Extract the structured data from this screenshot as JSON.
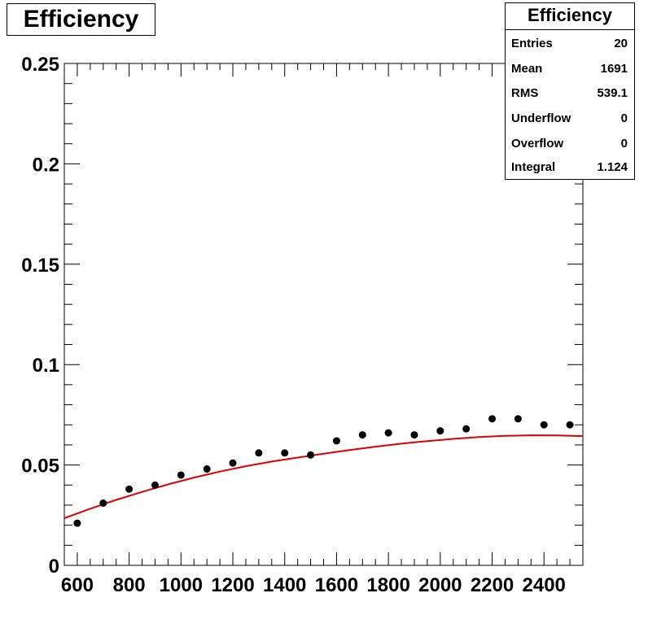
{
  "title": "Efficiency",
  "stats": {
    "title": "Efficiency",
    "rows": [
      {
        "label": "Entries",
        "value": "20"
      },
      {
        "label": "Mean",
        "value": "1691"
      },
      {
        "label": "RMS",
        "value": "539.1"
      },
      {
        "label": "Underflow",
        "value": "0"
      },
      {
        "label": "Overflow",
        "value": "0"
      },
      {
        "label": "Integral",
        "value": "1.124"
      }
    ]
  },
  "colors": {
    "fit": "#dd0000",
    "points": "#000000",
    "frame": "#000000"
  },
  "chart_data": {
    "type": "scatter",
    "title": "Efficiency",
    "xlabel": "",
    "ylabel": "",
    "xlim": [
      550,
      2550
    ],
    "ylim": [
      0,
      0.25
    ],
    "x_ticks": [
      600,
      800,
      1000,
      1200,
      1400,
      1600,
      1800,
      2000,
      2200,
      2400
    ],
    "x_tick_labels": [
      "600",
      "800",
      "1000",
      "1200",
      "1400",
      "1600",
      "1800",
      "2000",
      "2200",
      "2400"
    ],
    "y_ticks": [
      0,
      0.05,
      0.1,
      0.15,
      0.2,
      0.25
    ],
    "y_tick_labels": [
      "0",
      "0.05",
      "0.1",
      "0.15",
      "0.2",
      "0.25"
    ],
    "grid": false,
    "series": [
      {
        "x": [
          600,
          700,
          800,
          900,
          1000,
          1100,
          1200,
          1300,
          1400,
          1500,
          1600,
          1700,
          1800,
          1900,
          2000,
          2100,
          2200,
          2300,
          2400,
          2500
        ],
        "y": [
          0.021,
          0.031,
          0.038,
          0.04,
          0.045,
          0.048,
          0.051,
          0.056,
          0.056,
          0.055,
          0.062,
          0.065,
          0.066,
          0.065,
          0.067,
          0.068,
          0.073,
          0.073,
          0.07,
          0.07
        ]
      }
    ],
    "fit": {
      "type": "quadratic",
      "color": "#dd0000",
      "x": [
        550,
        650,
        750,
        850,
        950,
        1050,
        1150,
        1250,
        1350,
        1450,
        1550,
        1650,
        1750,
        1850,
        1950,
        2050,
        2150,
        2250,
        2350,
        2450,
        2550
      ],
      "y": [
        0.0235,
        0.0282,
        0.0326,
        0.0366,
        0.0403,
        0.0437,
        0.0467,
        0.0494,
        0.0517,
        0.0537,
        0.0556,
        0.0574,
        0.0591,
        0.0606,
        0.0619,
        0.063,
        0.0639,
        0.0645,
        0.0648,
        0.0647,
        0.0644
      ]
    }
  }
}
